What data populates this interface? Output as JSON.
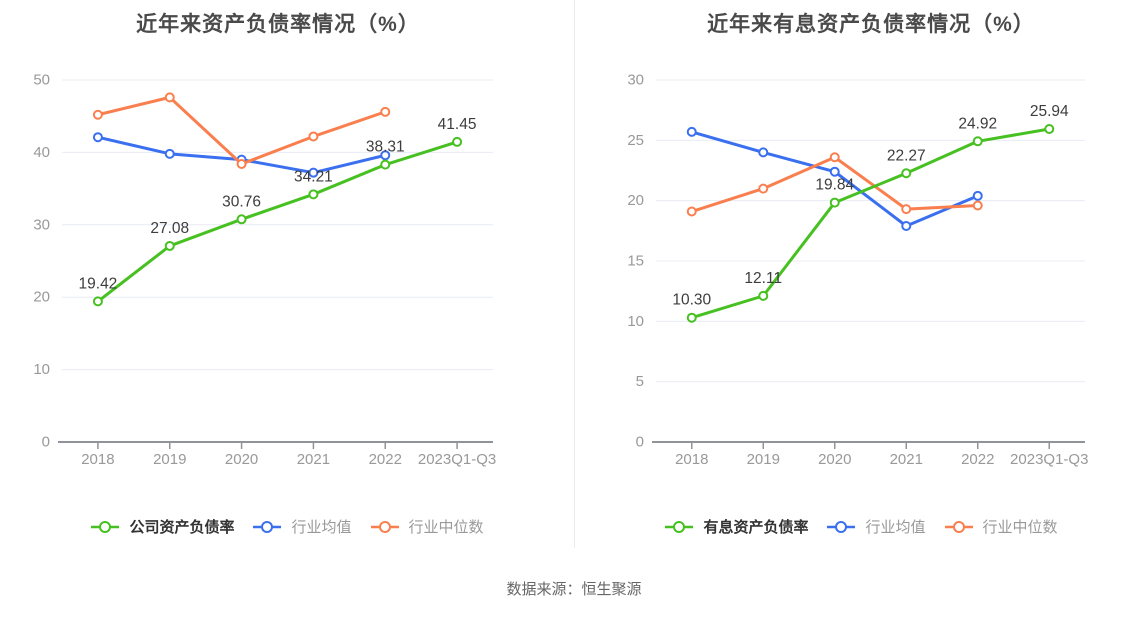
{
  "footer": {
    "text": "数据来源：恒生聚源"
  },
  "colors": {
    "company_series": "#47c021",
    "industry_mean_series": "#3a70ef",
    "industry_median_series": "#fa7f4e",
    "grid_line": "#e8ecf6",
    "axis_line": "#909399",
    "tick_label": "#999999",
    "title_text": "#4a4a4a",
    "value_label": "#3d3d3d"
  },
  "chart_data": [
    {
      "type": "line",
      "title": "近年来资产负债率情况（%）",
      "categories": [
        "2018",
        "2019",
        "2020",
        "2021",
        "2022",
        "2023Q1-Q3"
      ],
      "series": [
        {
          "name": "公司资产负债率",
          "color": "#47c021",
          "labeled": true,
          "emphasis": true,
          "values": [
            19.42,
            27.08,
            30.76,
            34.21,
            38.31,
            41.45
          ]
        },
        {
          "name": "行业均值",
          "color": "#3a70ef",
          "labeled": false,
          "emphasis": false,
          "values": [
            42.1,
            39.8,
            39.0,
            37.2,
            39.6
          ]
        },
        {
          "name": "行业中位数",
          "color": "#fa7f4e",
          "labeled": false,
          "emphasis": false,
          "values": [
            45.2,
            47.6,
            38.4,
            42.2,
            45.6
          ]
        }
      ],
      "ylim": [
        0,
        50
      ],
      "ytick_interval": 10,
      "grid": true,
      "legend_position": "bottom"
    },
    {
      "type": "line",
      "title": "近年来有息资产负债率情况（%）",
      "categories": [
        "2018",
        "2019",
        "2020",
        "2021",
        "2022",
        "2023Q1-Q3"
      ],
      "series": [
        {
          "name": "有息资产负债率",
          "color": "#47c021",
          "labeled": true,
          "emphasis": true,
          "values": [
            10.3,
            12.11,
            19.84,
            22.27,
            24.92,
            25.94
          ]
        },
        {
          "name": "行业均值",
          "color": "#3a70ef",
          "labeled": false,
          "emphasis": false,
          "values": [
            25.7,
            24.0,
            22.4,
            17.9,
            20.4
          ]
        },
        {
          "name": "行业中位数",
          "color": "#fa7f4e",
          "labeled": false,
          "emphasis": false,
          "values": [
            19.1,
            21.0,
            23.6,
            19.3,
            19.6
          ]
        }
      ],
      "ylim": [
        0,
        30
      ],
      "ytick_interval": 5,
      "grid": true,
      "legend_position": "bottom"
    }
  ]
}
